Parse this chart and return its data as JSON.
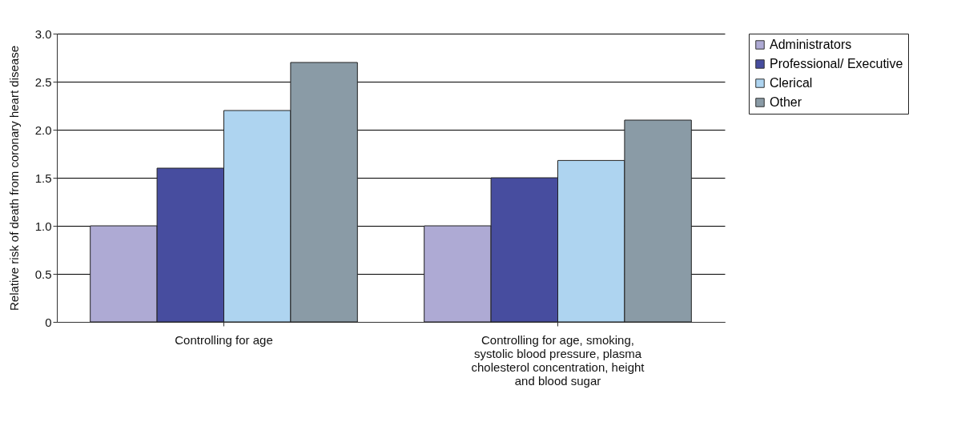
{
  "chart_data": {
    "type": "bar",
    "ylabel": "Relative risk of death from coronary heart disease",
    "categories": [
      "Controlling for age",
      "Controlling for age, smoking, systolic blood pressure, plasma cholesterol concentration, height and blood sugar"
    ],
    "series": [
      {
        "name": "Administrators",
        "color": "#aeaad4",
        "values": [
          1.0,
          1.0
        ]
      },
      {
        "name": "Professional/ Executive",
        "color": "#474d9f",
        "values": [
          1.6,
          1.5
        ]
      },
      {
        "name": "Clerical",
        "color": "#aed4f0",
        "values": [
          2.2,
          1.68
        ]
      },
      {
        "name": "Other",
        "color": "#8a9ba6",
        "values": [
          2.7,
          2.1
        ]
      }
    ],
    "ylim": [
      0,
      3
    ],
    "yticks": [
      0,
      {
        "value": 0.5,
        "label": "0.5"
      },
      {
        "value": 1,
        "label": "1.0"
      },
      {
        "value": 1.5,
        "label": "1.5"
      },
      {
        "value": 2,
        "label": "2.0"
      },
      {
        "value": 2.5,
        "label": "2.5"
      },
      {
        "value": 3,
        "label": "3.0"
      }
    ],
    "grid": "y",
    "legend": "right"
  }
}
